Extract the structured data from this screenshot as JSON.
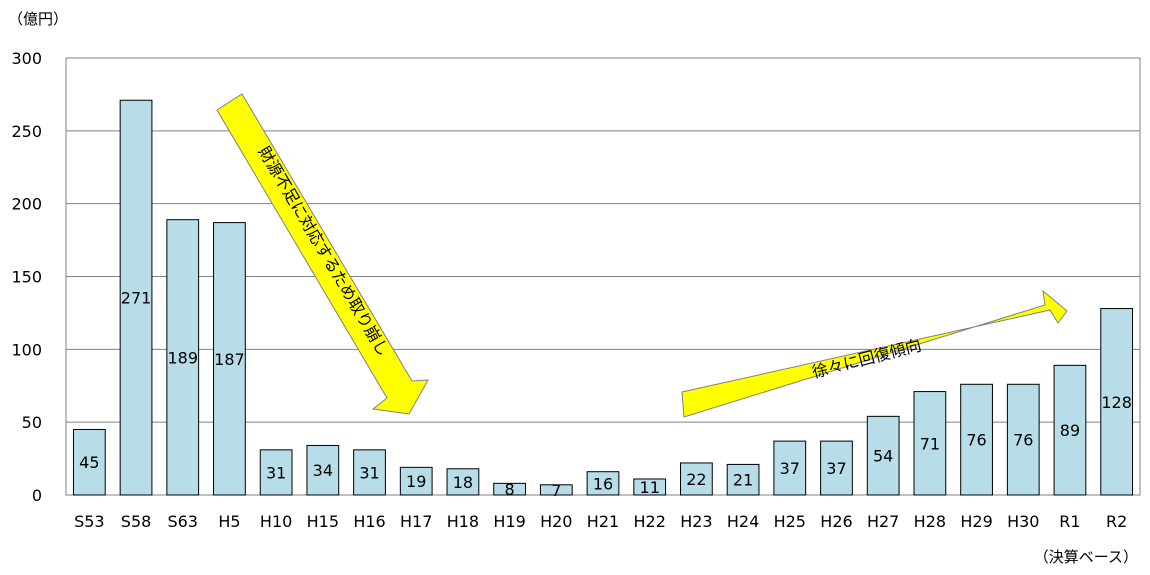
{
  "chart_data": {
    "type": "bar",
    "unit_label": "（億円）",
    "note": "（決算ベース）",
    "categories": [
      "S53",
      "S58",
      "S63",
      "H5",
      "H10",
      "H15",
      "H16",
      "H17",
      "H18",
      "H19",
      "H20",
      "H21",
      "H22",
      "H23",
      "H24",
      "H25",
      "H26",
      "H27",
      "H28",
      "H29",
      "H30",
      "R1",
      "R2"
    ],
    "values": [
      45,
      271,
      189,
      187,
      31,
      34,
      31,
      19,
      18,
      8,
      7,
      16,
      11,
      22,
      21,
      37,
      37,
      54,
      71,
      76,
      76,
      89,
      128
    ],
    "ylim": [
      0,
      300
    ],
    "yticks": [
      0,
      50,
      100,
      150,
      200,
      250,
      300
    ],
    "grid": true,
    "bar_color": "#b7dde8",
    "annotations": [
      {
        "text": "財源不足に対応するため取り崩し",
        "fill": "#ffff00"
      },
      {
        "text": "徐々に回復傾向",
        "fill": "#ffff00"
      }
    ]
  }
}
